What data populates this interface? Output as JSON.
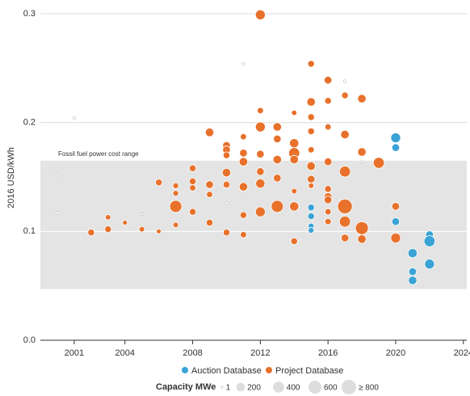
{
  "chart_data": {
    "type": "bubble",
    "y_label": "2016 USD/kWh",
    "xlim": [
      1999,
      2024.2
    ],
    "xticks": [
      2001,
      2004,
      2008,
      2012,
      2016,
      2020,
      2024
    ],
    "ylim": [
      0,
      0.3
    ],
    "yticks": [
      {
        "value": 0,
        "label": "0.0"
      },
      0.1,
      0.2,
      0.3
    ],
    "grid": true,
    "band": {
      "label": "Fossil fuel power cost range",
      "range": [
        0.047,
        0.165
      ]
    },
    "series": [
      {
        "name": "Auction Database",
        "color": "#3aa3d6",
        "x": [
          2015,
          2015,
          2015,
          2015,
          2020,
          2020,
          2020,
          2021,
          2021,
          2021,
          2022,
          2022,
          2022
        ],
        "values": [
          0.122,
          0.114,
          0.105,
          0.101,
          0.186,
          0.177,
          0.109,
          0.08,
          0.063,
          0.055,
          0.097,
          0.091,
          0.07
        ],
        "sizes": [
          100,
          100,
          60,
          60,
          300,
          150,
          150,
          250,
          150,
          200,
          150,
          400,
          300
        ]
      },
      {
        "name": "Project Database",
        "color": "#e8712b",
        "x": [
          2000,
          2000,
          2001,
          2002,
          2003,
          2003,
          2004,
          2005,
          2005,
          2006,
          2006,
          2007,
          2007,
          2007,
          2007,
          2008,
          2008,
          2008,
          2008,
          2009,
          2009,
          2009,
          2009,
          2010,
          2010,
          2010,
          2010,
          2010,
          2010,
          2010,
          2011,
          2011,
          2011,
          2011,
          2011,
          2011,
          2011,
          2012,
          2012,
          2012,
          2012,
          2012,
          2012,
          2012,
          2013,
          2013,
          2013,
          2013,
          2013,
          2014,
          2014,
          2014,
          2014,
          2014,
          2014,
          2014,
          2015,
          2015,
          2015,
          2015,
          2015,
          2015,
          2015,
          2015,
          2016,
          2016,
          2016,
          2016,
          2016,
          2016,
          2016,
          2016,
          2016,
          2017,
          2017,
          2017,
          2017,
          2017,
          2017,
          2017,
          2018,
          2018,
          2018,
          2018,
          2018,
          2019,
          2020,
          2020
        ],
        "values": [
          0.117,
          0.152,
          0.204,
          0.099,
          0.102,
          0.113,
          0.108,
          0.116,
          0.102,
          0.145,
          0.1,
          0.123,
          0.135,
          0.142,
          0.106,
          0.158,
          0.146,
          0.14,
          0.118,
          0.191,
          0.143,
          0.134,
          0.108,
          0.179,
          0.175,
          0.17,
          0.154,
          0.143,
          0.126,
          0.099,
          0.254,
          0.187,
          0.172,
          0.164,
          0.141,
          0.115,
          0.097,
          0.299,
          0.211,
          0.196,
          0.171,
          0.155,
          0.144,
          0.118,
          0.196,
          0.185,
          0.166,
          0.149,
          0.123,
          0.209,
          0.181,
          0.172,
          0.166,
          0.137,
          0.123,
          0.091,
          0.254,
          0.219,
          0.205,
          0.192,
          0.175,
          0.16,
          0.148,
          0.142,
          0.239,
          0.22,
          0.196,
          0.164,
          0.139,
          0.132,
          0.129,
          0.118,
          0.109,
          0.238,
          0.225,
          0.189,
          0.155,
          0.123,
          0.109,
          0.094,
          0.222,
          0.173,
          0.164,
          0.103,
          0.093,
          0.163,
          0.123,
          0.094
        ],
        "sizes": [
          1,
          1,
          1,
          100,
          100,
          50,
          30,
          1,
          50,
          100,
          30,
          500,
          60,
          60,
          50,
          100,
          100,
          80,
          100,
          200,
          150,
          80,
          100,
          150,
          150,
          100,
          200,
          100,
          1,
          100,
          1,
          80,
          150,
          200,
          200,
          100,
          80,
          300,
          80,
          300,
          150,
          150,
          250,
          300,
          200,
          150,
          200,
          150,
          500,
          50,
          250,
          400,
          200,
          50,
          250,
          100,
          100,
          200,
          100,
          100,
          80,
          200,
          150,
          50,
          150,
          100,
          80,
          150,
          100,
          150,
          150,
          80,
          80,
          1,
          100,
          200,
          400,
          800,
          400,
          150,
          200,
          200,
          1,
          600,
          200,
          400,
          150,
          300
        ]
      }
    ],
    "size_legend": {
      "title": "Capacity MWe",
      "sizes": [
        1,
        200,
        400,
        600,
        {
          "value": 800,
          "label": "≥ 800"
        }
      ]
    }
  }
}
